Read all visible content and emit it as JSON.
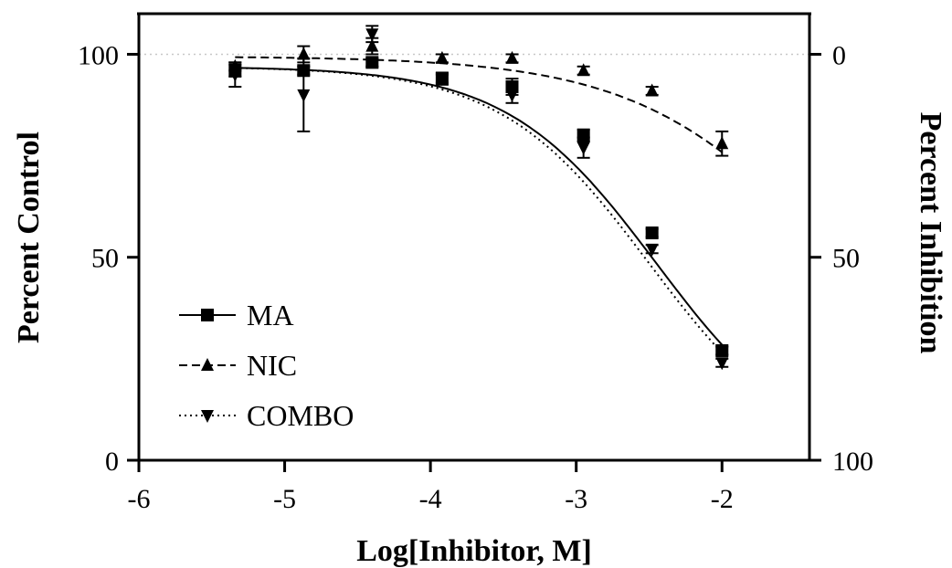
{
  "chart_data": {
    "type": "scatter",
    "title": "",
    "xlabel": "Log[Inhibitor, M]",
    "ylabel": "Percent Control",
    "y2label": "Percent Inhibition",
    "xlim": [
      -6,
      -1.4
    ],
    "ylim": [
      0,
      110
    ],
    "xticks": [
      -6,
      -5,
      -4,
      -3,
      -2
    ],
    "xtick_labels": [
      "-6",
      "-5",
      "-4",
      "-3",
      "-2"
    ],
    "yticks": [
      0,
      50,
      100
    ],
    "ytick_labels": [
      "0",
      "50",
      "100"
    ],
    "y2ticks": [
      100,
      50,
      0
    ],
    "y2tick_labels": [
      "0",
      "50",
      "100"
    ],
    "reference_line": 100,
    "legend_position": "bottom-left",
    "series": [
      {
        "name": "MA",
        "marker": "square",
        "line_style": "solid",
        "x": [
          -5.34,
          -4.87,
          -4.4,
          -3.92,
          -3.44,
          -2.95,
          -2.48,
          -2.0
        ],
        "y": [
          96,
          96,
          98,
          94,
          92,
          80,
          56,
          27
        ],
        "err": [
          1.5,
          1,
          1,
          1,
          2,
          1.5,
          1,
          1
        ],
        "fit": {
          "top": 97,
          "bottom": 0,
          "logIC50": -2.45,
          "hill": 0.85
        }
      },
      {
        "name": "NIC",
        "marker": "triangle-up",
        "line_style": "dashed",
        "x": [
          -5.34,
          -4.87,
          -4.4,
          -3.92,
          -3.44,
          -2.95,
          -2.48,
          -2.0
        ],
        "y": [
          97,
          100,
          102,
          99,
          99,
          96,
          91,
          78
        ],
        "err": [
          1,
          2,
          2,
          1,
          1,
          1,
          1,
          3
        ],
        "fit": {
          "top": 99.5,
          "bottom": 0,
          "logIC50": -1.22,
          "hill": 0.65
        }
      },
      {
        "name": "COMBO",
        "marker": "triangle-down",
        "line_style": "dotted",
        "x": [
          -5.34,
          -4.87,
          -4.4,
          -3.92,
          -3.44,
          -2.95,
          -2.48,
          -2.0
        ],
        "y": [
          95,
          90,
          105,
          94,
          90,
          77,
          52,
          24
        ],
        "err": [
          3,
          9,
          2,
          1.5,
          2,
          2.5,
          1,
          1
        ],
        "fit": {
          "top": 97,
          "bottom": 0,
          "logIC50": -2.5,
          "hill": 0.85
        }
      }
    ]
  }
}
